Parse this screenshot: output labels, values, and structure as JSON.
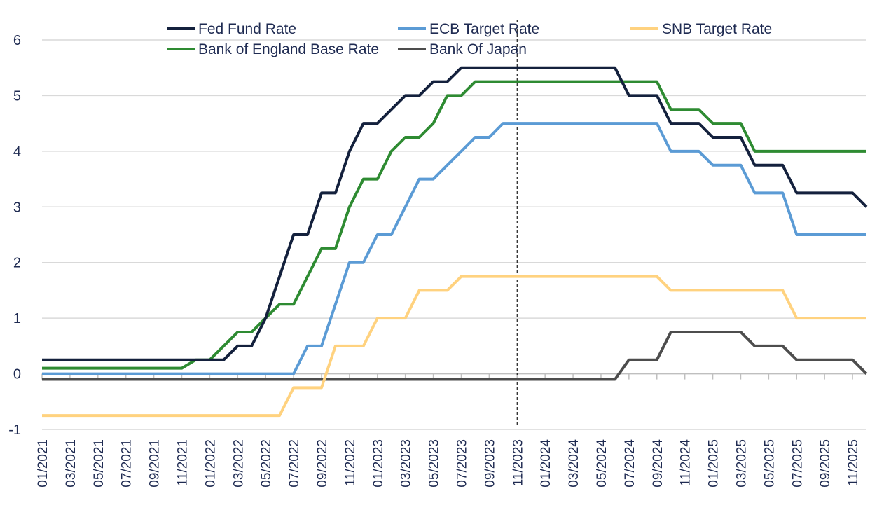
{
  "chart_data": {
    "type": "line",
    "title": "",
    "xlabel": "",
    "ylabel": "",
    "ylim": [
      -1,
      6
    ],
    "yticks": [
      -1,
      0,
      1,
      2,
      3,
      4,
      5,
      6
    ],
    "grid": "horizontal",
    "legend_placement": "top",
    "x": [
      "01/2021",
      "02/2021",
      "03/2021",
      "04/2021",
      "05/2021",
      "06/2021",
      "07/2021",
      "08/2021",
      "09/2021",
      "10/2021",
      "11/2021",
      "12/2021",
      "01/2022",
      "02/2022",
      "03/2022",
      "04/2022",
      "05/2022",
      "06/2022",
      "07/2022",
      "08/2022",
      "09/2022",
      "10/2022",
      "11/2022",
      "12/2022",
      "01/2023",
      "02/2023",
      "03/2023",
      "04/2023",
      "05/2023",
      "06/2023",
      "07/2023",
      "08/2023",
      "09/2023",
      "10/2023",
      "11/2023",
      "12/2023",
      "01/2024",
      "02/2024",
      "03/2024",
      "04/2024",
      "05/2024",
      "06/2024",
      "07/2024",
      "08/2024",
      "09/2024",
      "10/2024",
      "11/2024",
      "12/2024",
      "01/2025",
      "02/2025",
      "03/2025",
      "04/2025",
      "05/2025",
      "06/2025",
      "07/2025",
      "08/2025",
      "09/2025",
      "10/2025",
      "11/2025",
      "12/2025"
    ],
    "xtick_labels": [
      "01/2021",
      "03/2021",
      "05/2021",
      "07/2021",
      "09/2021",
      "11/2021",
      "01/2022",
      "03/2022",
      "05/2022",
      "07/2022",
      "09/2022",
      "11/2022",
      "01/2023",
      "03/2023",
      "05/2023",
      "07/2023",
      "09/2023",
      "11/2023",
      "01/2024",
      "03/2024",
      "05/2024",
      "07/2024",
      "09/2024",
      "11/2024",
      "01/2025",
      "03/2025",
      "05/2025",
      "07/2025",
      "09/2025",
      "11/2025"
    ],
    "vertical_marker": "11/2023",
    "series": [
      {
        "name": "Fed Fund Rate",
        "color": "#14213d",
        "values": [
          0.25,
          0.25,
          0.25,
          0.25,
          0.25,
          0.25,
          0.25,
          0.25,
          0.25,
          0.25,
          0.25,
          0.25,
          0.25,
          0.25,
          0.5,
          0.5,
          1.0,
          1.75,
          2.5,
          2.5,
          3.25,
          3.25,
          4.0,
          4.5,
          4.5,
          4.75,
          5.0,
          5.0,
          5.25,
          5.25,
          5.5,
          5.5,
          5.5,
          5.5,
          5.5,
          5.5,
          5.5,
          5.5,
          5.5,
          5.5,
          5.5,
          5.5,
          5.0,
          5.0,
          5.0,
          4.5,
          4.5,
          4.5,
          4.25,
          4.25,
          4.25,
          3.75,
          3.75,
          3.75,
          3.25,
          3.25,
          3.25,
          3.25,
          3.25,
          3.0
        ]
      },
      {
        "name": "ECB Target Rate",
        "color": "#5b9bd5",
        "values": [
          0,
          0,
          0,
          0,
          0,
          0,
          0,
          0,
          0,
          0,
          0,
          0,
          0,
          0,
          0,
          0,
          0,
          0,
          0,
          0.5,
          0.5,
          1.25,
          2.0,
          2.0,
          2.5,
          2.5,
          3.0,
          3.5,
          3.5,
          3.75,
          4.0,
          4.25,
          4.25,
          4.5,
          4.5,
          4.5,
          4.5,
          4.5,
          4.5,
          4.5,
          4.5,
          4.5,
          4.5,
          4.5,
          4.5,
          4.0,
          4.0,
          4.0,
          3.75,
          3.75,
          3.75,
          3.25,
          3.25,
          3.25,
          2.5,
          2.5,
          2.5,
          2.5,
          2.5,
          2.5
        ]
      },
      {
        "name": "SNB Target Rate",
        "color": "#ffd27f",
        "values": [
          -0.75,
          -0.75,
          -0.75,
          -0.75,
          -0.75,
          -0.75,
          -0.75,
          -0.75,
          -0.75,
          -0.75,
          -0.75,
          -0.75,
          -0.75,
          -0.75,
          -0.75,
          -0.75,
          -0.75,
          -0.75,
          -0.25,
          -0.25,
          -0.25,
          0.5,
          0.5,
          0.5,
          1.0,
          1.0,
          1.0,
          1.5,
          1.5,
          1.5,
          1.75,
          1.75,
          1.75,
          1.75,
          1.75,
          1.75,
          1.75,
          1.75,
          1.75,
          1.75,
          1.75,
          1.75,
          1.75,
          1.75,
          1.75,
          1.5,
          1.5,
          1.5,
          1.5,
          1.5,
          1.5,
          1.5,
          1.5,
          1.5,
          1.0,
          1.0,
          1.0,
          1.0,
          1.0,
          1.0
        ]
      },
      {
        "name": "Bank of England Base Rate",
        "color": "#2e8b32",
        "values": [
          0.1,
          0.1,
          0.1,
          0.1,
          0.1,
          0.1,
          0.1,
          0.1,
          0.1,
          0.1,
          0.1,
          0.25,
          0.25,
          0.5,
          0.75,
          0.75,
          1.0,
          1.25,
          1.25,
          1.75,
          2.25,
          2.25,
          3.0,
          3.5,
          3.5,
          4.0,
          4.25,
          4.25,
          4.5,
          5.0,
          5.0,
          5.25,
          5.25,
          5.25,
          5.25,
          5.25,
          5.25,
          5.25,
          5.25,
          5.25,
          5.25,
          5.25,
          5.25,
          5.25,
          5.25,
          4.75,
          4.75,
          4.75,
          4.5,
          4.5,
          4.5,
          4.0,
          4.0,
          4.0,
          4.0,
          4.0,
          4.0,
          4.0,
          4.0,
          4.0
        ]
      },
      {
        "name": "Bank Of Japan",
        "color": "#4d4d4d",
        "values": [
          -0.1,
          -0.1,
          -0.1,
          -0.1,
          -0.1,
          -0.1,
          -0.1,
          -0.1,
          -0.1,
          -0.1,
          -0.1,
          -0.1,
          -0.1,
          -0.1,
          -0.1,
          -0.1,
          -0.1,
          -0.1,
          -0.1,
          -0.1,
          -0.1,
          -0.1,
          -0.1,
          -0.1,
          -0.1,
          -0.1,
          -0.1,
          -0.1,
          -0.1,
          -0.1,
          -0.1,
          -0.1,
          -0.1,
          -0.1,
          -0.1,
          -0.1,
          -0.1,
          -0.1,
          -0.1,
          -0.1,
          -0.1,
          -0.1,
          0.25,
          0.25,
          0.25,
          0.75,
          0.75,
          0.75,
          0.75,
          0.75,
          0.75,
          0.5,
          0.5,
          0.5,
          0.25,
          0.25,
          0.25,
          0.25,
          0.25,
          0.0
        ]
      }
    ]
  }
}
